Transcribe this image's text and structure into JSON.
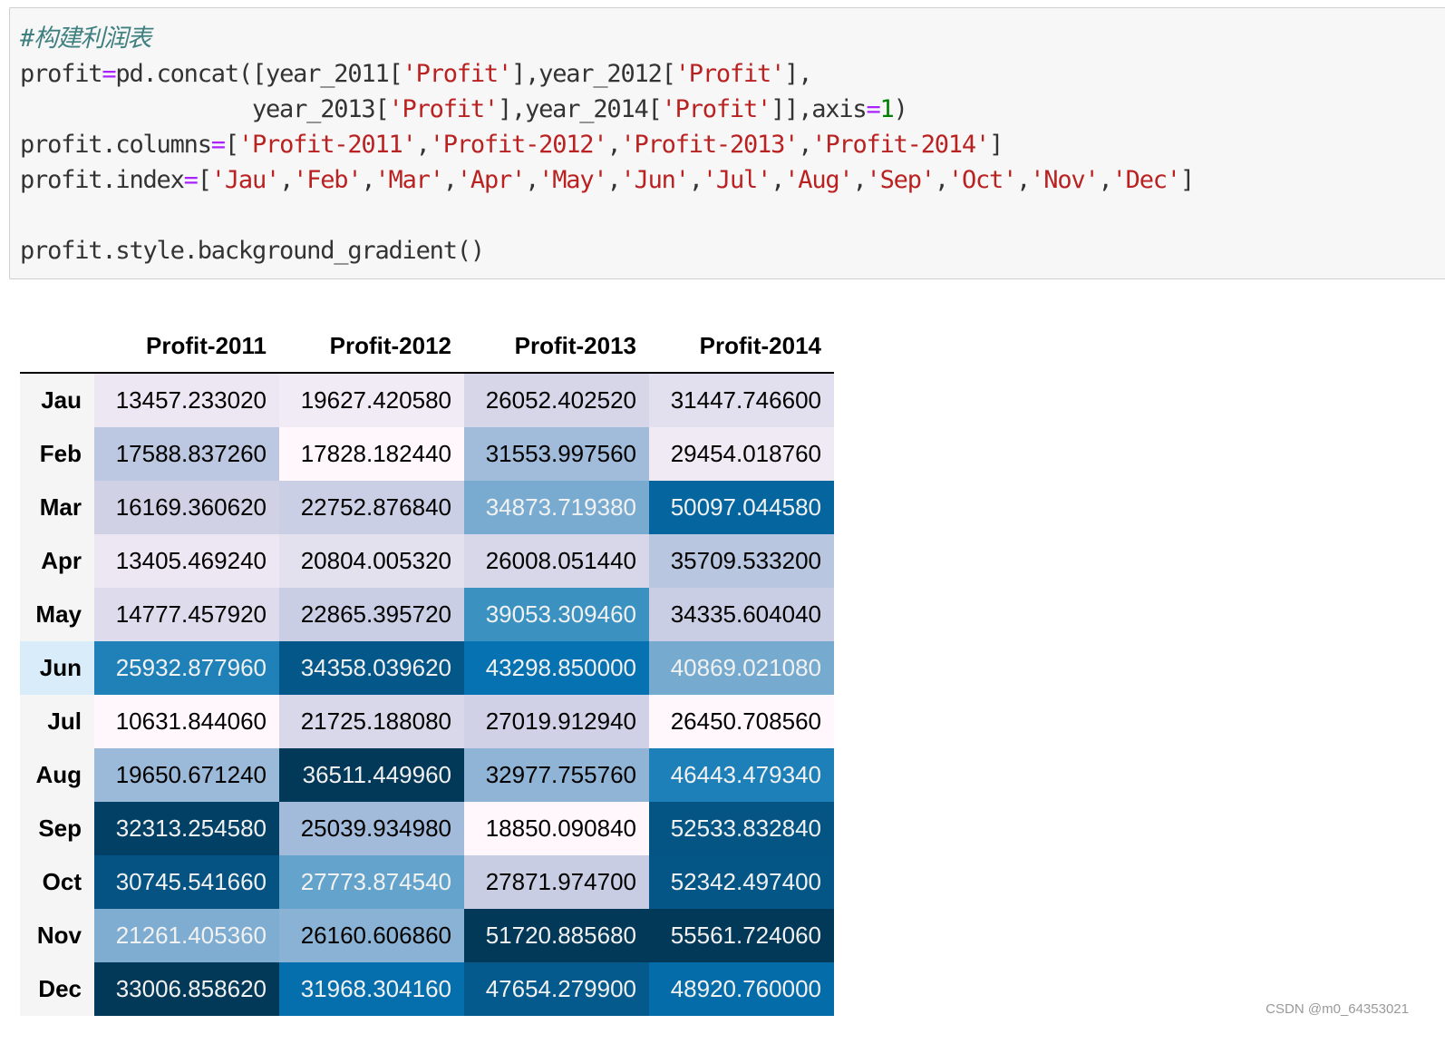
{
  "code": {
    "lines": [
      "#构建利润表",
      "profit=pd.concat([year_2011['Profit'],year_2012['Profit'],",
      "                 year_2013['Profit'],year_2014['Profit']],axis=1)",
      "profit.columns=['Profit-2011','Profit-2012','Profit-2013','Profit-2014']",
      "profit.index=['Jau','Feb','Mar','Apr','May','Jun','Jul','Aug','Sep','Oct','Nov','Dec']",
      "profit.style.background_gradient()"
    ]
  },
  "table": {
    "columns": [
      "Profit-2011",
      "Profit-2012",
      "Profit-2013",
      "Profit-2014"
    ],
    "index": [
      "Jau",
      "Feb",
      "Mar",
      "Apr",
      "May",
      "Jun",
      "Jul",
      "Aug",
      "Sep",
      "Oct",
      "Nov",
      "Dec"
    ],
    "rows": [
      [
        "13457.233020",
        "19627.420580",
        "26052.402520",
        "31447.746600"
      ],
      [
        "17588.837260",
        "17828.182440",
        "31553.997560",
        "29454.018760"
      ],
      [
        "16169.360620",
        "22752.876840",
        "34873.719380",
        "50097.044580"
      ],
      [
        "13405.469240",
        "20804.005320",
        "26008.051440",
        "35709.533200"
      ],
      [
        "14777.457920",
        "22865.395720",
        "39053.309460",
        "34335.604040"
      ],
      [
        "25932.877960",
        "34358.039620",
        "43298.850000",
        "40869.021080"
      ],
      [
        "10631.844060",
        "21725.188080",
        "27019.912940",
        "26450.708560"
      ],
      [
        "19650.671240",
        "36511.449960",
        "32977.755760",
        "46443.479340"
      ],
      [
        "32313.254580",
        "25039.934980",
        "18850.090840",
        "52533.832840"
      ],
      [
        "30745.541660",
        "27773.874540",
        "27871.974700",
        "52342.497400"
      ],
      [
        "21261.405360",
        "26160.606860",
        "51720.885680",
        "55561.724060"
      ],
      [
        "33006.858620",
        "31968.304160",
        "47654.279900",
        "48920.760000"
      ]
    ]
  },
  "watermark": "CSDN @m0_64353021"
}
